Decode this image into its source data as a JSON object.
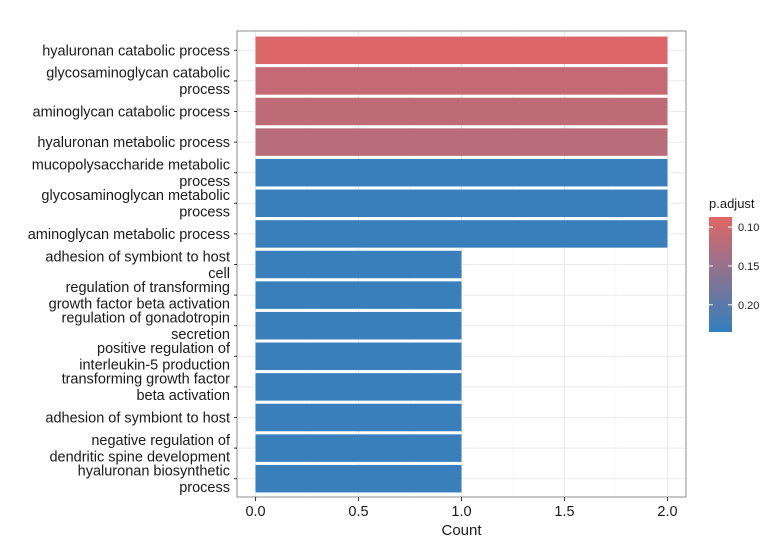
{
  "chart_data": {
    "type": "bar",
    "orientation": "horizontal",
    "categories": [
      "hyaluronan catabolic process",
      "glycosaminoglycan catabolic process",
      "aminoglycan catabolic process",
      "hyaluronan metabolic process",
      "mucopolysaccharide metabolic process",
      "glycosaminoglycan metabolic process",
      "aminoglycan metabolic process",
      "adhesion of symbiont to host cell",
      "regulation of transforming growth factor beta activation",
      "regulation of gonadotropin secretion",
      "positive regulation of interleukin-5 production",
      "transforming growth factor beta activation",
      "adhesion of symbiont to host",
      "negative regulation of dendritic spine development",
      "hyaluronan biosynthetic process"
    ],
    "category_lines": [
      [
        "hyaluronan catabolic process"
      ],
      [
        "glycosaminoglycan catabolic",
        "process"
      ],
      [
        "aminoglycan catabolic process"
      ],
      [
        "hyaluronan metabolic process"
      ],
      [
        "mucopolysaccharide metabolic",
        "process"
      ],
      [
        "glycosaminoglycan metabolic",
        "process"
      ],
      [
        "aminoglycan metabolic process"
      ],
      [
        "adhesion of symbiont to host",
        "cell"
      ],
      [
        "regulation of transforming",
        "growth factor beta activation"
      ],
      [
        "regulation of gonadotropin",
        "secretion"
      ],
      [
        "positive regulation of",
        "interleukin-5 production"
      ],
      [
        "transforming growth factor",
        "beta activation"
      ],
      [
        "adhesion of symbiont to host"
      ],
      [
        "negative regulation of",
        "dendritic spine development"
      ],
      [
        "hyaluronan biosynthetic",
        "process"
      ]
    ],
    "values": [
      2,
      2,
      2,
      2,
      2,
      2,
      2,
      1,
      1,
      1,
      1,
      1,
      1,
      1,
      1
    ],
    "p_adjust": [
      0.09,
      0.11,
      0.115,
      0.12,
      0.23,
      0.23,
      0.23,
      0.23,
      0.23,
      0.23,
      0.23,
      0.23,
      0.23,
      0.23,
      0.23
    ],
    "xlabel": "Count",
    "ylabel": "",
    "xlim": [
      -0.09,
      2.09
    ],
    "x_ticks": [
      0.0,
      0.5,
      1.0,
      1.5,
      2.0
    ],
    "x_tick_labels": [
      "0.0",
      "0.5",
      "1.0",
      "1.5",
      "2.0"
    ],
    "grid": true,
    "legend": {
      "title": "p.adjust",
      "placement": "right",
      "type": "colorbar",
      "range": [
        0.087,
        0.235
      ],
      "ticks": [
        0.1,
        0.15,
        0.2
      ],
      "tick_labels": [
        "0.10",
        "0.15",
        "0.20"
      ],
      "color_low": "#e06666",
      "color_high": "#3280be"
    }
  }
}
